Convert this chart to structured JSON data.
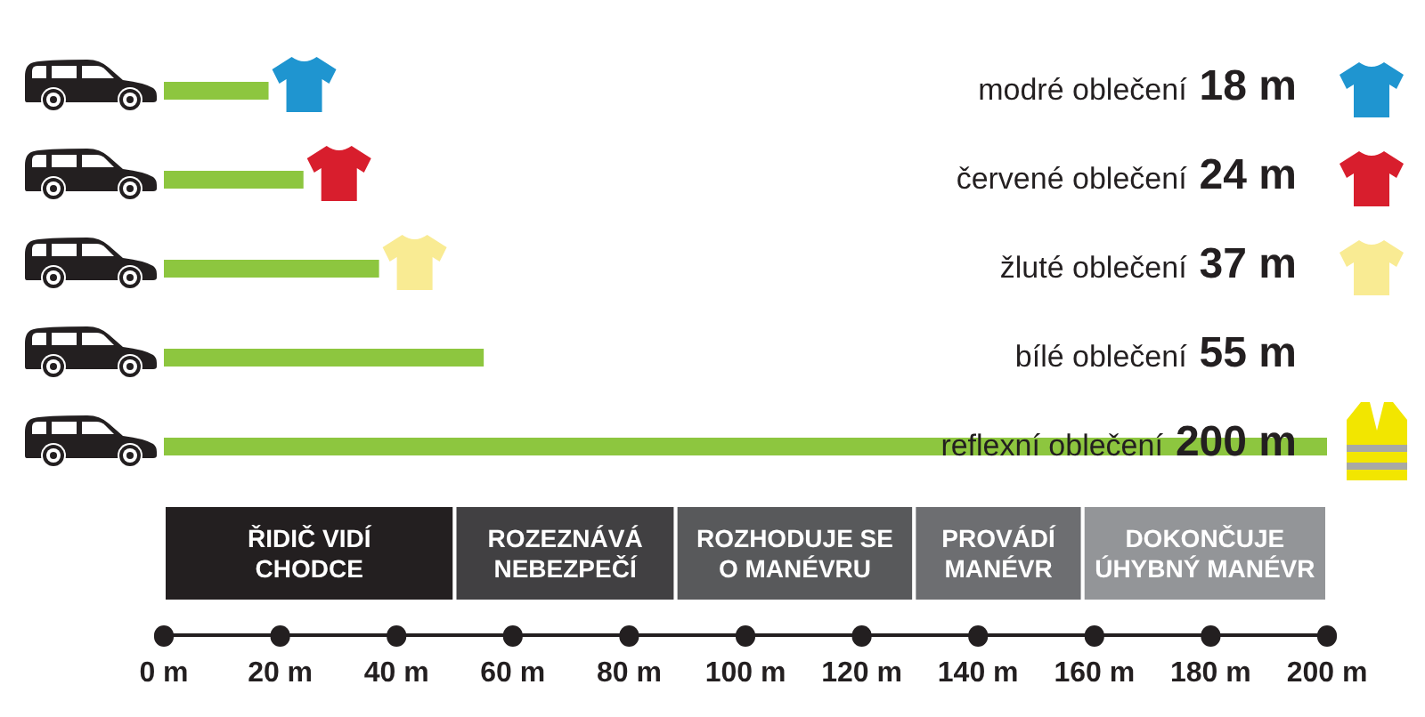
{
  "chart_data": {
    "type": "bar",
    "orientation": "horizontal",
    "categories": [
      "modré oblečení",
      "červené oblečení",
      "žluté oblečení",
      "bílé oblečení",
      "reflexní oblečení"
    ],
    "values": [
      18,
      24,
      37,
      55,
      200
    ],
    "value_labels": [
      "18 m",
      "24 m",
      "37 m",
      "55 m",
      "200 m"
    ],
    "color": "#8dc63f",
    "xlim": [
      0,
      200
    ],
    "xticks": [
      {
        "value": 0,
        "label": "0 m"
      },
      {
        "value": 20,
        "label": "20 m"
      },
      {
        "value": 40,
        "label": "40 m"
      },
      {
        "value": 60,
        "label": "60 m"
      },
      {
        "value": 80,
        "label": "80 m"
      },
      {
        "value": 100,
        "label": "100 m"
      },
      {
        "value": 120,
        "label": "120 m"
      },
      {
        "value": 140,
        "label": "140 m"
      },
      {
        "value": 160,
        "label": "160 m"
      },
      {
        "value": 180,
        "label": "180 m"
      },
      {
        "value": 200,
        "label": "200 m"
      }
    ],
    "bands": [
      {
        "axis": "x",
        "from": 0,
        "to": 50,
        "label": "ŘIDIČ VIDÍ\nCHODCE",
        "color": "#231f20"
      },
      {
        "axis": "x",
        "from": 50,
        "to": 88,
        "label": "ROZEZNÁVÁ\nNEBEZPEČÍ",
        "color": "#414042"
      },
      {
        "axis": "x",
        "from": 88,
        "to": 129,
        "label": "ROZHODUJE SE\nO MANÉVRU",
        "color": "#58595b"
      },
      {
        "axis": "x",
        "from": 129,
        "to": 158,
        "label": "PROVÁDÍ\nMANÉVR",
        "color": "#6d6e71"
      },
      {
        "axis": "x",
        "from": 158,
        "to": 200,
        "label": "DOKONČUJE\nÚHYBNÝ MANÉVR",
        "color": "#939598"
      }
    ]
  }
}
